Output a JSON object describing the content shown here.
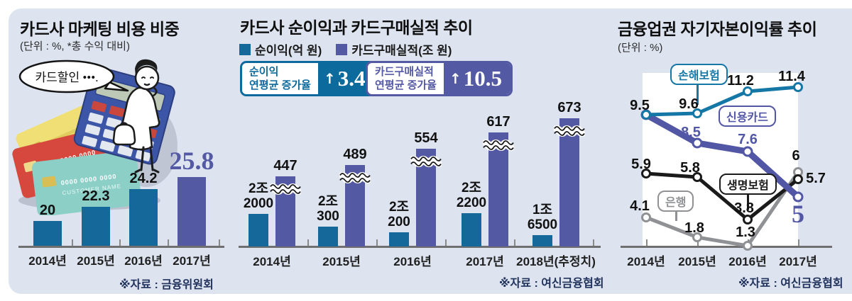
{
  "canvas": {
    "background": "#ffffff",
    "panel_background": "#dde4f0"
  },
  "panel1": {
    "title": "카드사 마케팅 비용 비중",
    "unit": "(단위 : %, *총 수익 대비)",
    "speech_bubble": "카드할인 •••.",
    "illustration": "woman-thinking-with-credit-cards-and-calculator",
    "source": "※자료 : 금융위원회",
    "chart_data": {
      "type": "bar",
      "title": "카드사 마케팅 비용 비중",
      "unit": "%",
      "categories": [
        "2014년",
        "2015년",
        "2016년",
        "2017년"
      ],
      "values": [
        20,
        22.3,
        24.2,
        25.8
      ],
      "highlight_index": 3,
      "bar_color": "#15689a",
      "highlight_color": "#5459a4",
      "ylim": [
        0,
        27
      ],
      "grid": false
    }
  },
  "panel2": {
    "title": "카드사 순이익과 카드구매실적 추이",
    "legend": [
      {
        "label": "순이익(억 원)",
        "color": "#15689a"
      },
      {
        "label": "카드구매실적(조 원)",
        "color": "#5459a4"
      }
    ],
    "badges": [
      {
        "line1": "순이익",
        "line2": "연평균 증가율",
        "arrow": "↑",
        "value": "3.4",
        "color": "#0d6a9d"
      },
      {
        "line1": "카드구매실적",
        "line2": "연평균 증가율",
        "arrow": "↑",
        "value": "10.5",
        "color": "#5459a4"
      }
    ],
    "source": "※자료 : 여신금융협회",
    "chart_data": {
      "type": "bar",
      "categories": [
        "2014년",
        "2015년",
        "2016년",
        "2017년",
        "2018년(추정치)"
      ],
      "series": [
        {
          "name": "순이익(억 원)",
          "unit": "억 원",
          "color": "#15689a",
          "values": [
            22000,
            20300,
            20200,
            22200,
            16500
          ],
          "value_labels": [
            [
              "2조",
              "2000"
            ],
            [
              "2조",
              "300"
            ],
            [
              "2조",
              "200"
            ],
            [
              "2조",
              "2200"
            ],
            [
              "1조",
              "6500"
            ]
          ]
        },
        {
          "name": "카드구매실적(조 원)",
          "unit": "조 원",
          "color": "#5459a4",
          "axis_break": true,
          "values": [
            447,
            489,
            554,
            617,
            673
          ],
          "value_labels": [
            [
              "447"
            ],
            [
              "489"
            ],
            [
              "554"
            ],
            [
              "617"
            ],
            [
              "673"
            ]
          ]
        }
      ],
      "grid": false
    }
  },
  "panel3": {
    "title": "금융업권 자기자본이익률 추이",
    "unit": "(단위 : %)",
    "source": "※자료 : 여신금융협회",
    "chart_data": {
      "type": "line",
      "unit": "%",
      "categories": [
        "2014년",
        "2015년",
        "2016년",
        "2017년"
      ],
      "series": [
        {
          "name": "손해보험",
          "color": "#1577a6",
          "values": [
            9.5,
            9.6,
            11.2,
            11.4
          ]
        },
        {
          "name": "신용카드",
          "color": "#5257a5",
          "values": [
            9.5,
            8.5,
            7.6,
            5
          ]
        },
        {
          "name": "생명보험",
          "color": "#1a1a1a",
          "values": [
            5.9,
            5.8,
            3.8,
            5.7
          ]
        },
        {
          "name": "은행",
          "color": "#8f9194",
          "values": [
            4.1,
            1.8,
            1.3,
            6
          ]
        }
      ],
      "ylim": [
        0,
        12
      ],
      "legend_position": "inline-boxes",
      "grid": false
    }
  }
}
